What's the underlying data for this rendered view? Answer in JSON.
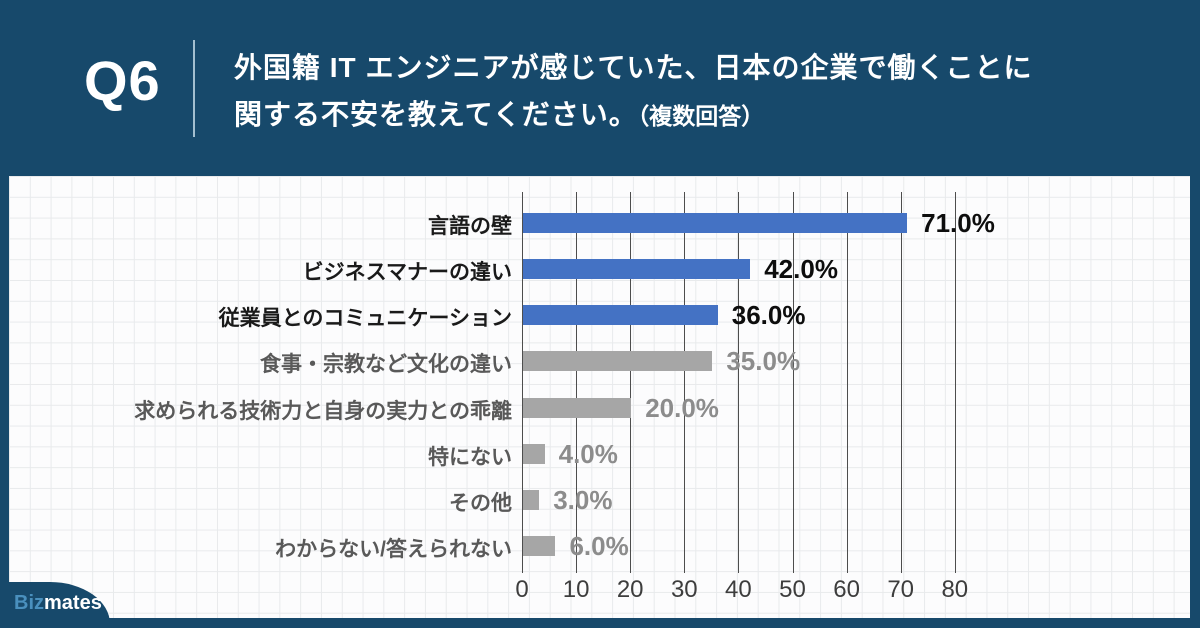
{
  "header": {
    "question_number": "Q6",
    "title_line1": "外国籍 IT エンジニアが感じていた、日本の企業で働くことに",
    "title_line2": "関する不安を教えてください。",
    "title_note": "（複数回答）"
  },
  "branding": {
    "logo_part1": "Biz",
    "logo_part2": "mates"
  },
  "colors": {
    "background_navy": "#17496B",
    "panel_white": "#fcfcfd",
    "graph_paper_line": "#e8eaec",
    "bar_blue": "#4472C4",
    "bar_gray": "#A6A6A6",
    "category_label_dark": "#1a1a1a",
    "category_label_gray": "#595959",
    "value_label_dark": "#0d0d0d",
    "value_label_gray": "#8C8C8C",
    "chart_gridline": "#4d4d4d",
    "tick_label": "#3d3d3d",
    "logo_biz_blue": "#4A90BE",
    "header_separator": "#bcd3e2"
  },
  "chart_data": {
    "type": "bar",
    "orientation": "horizontal",
    "title": "",
    "xlabel": "",
    "ylabel": "",
    "xlim": [
      0,
      80
    ],
    "x_ticks": [
      0,
      10,
      20,
      30,
      40,
      50,
      60,
      70,
      80
    ],
    "grid": "vertical-only",
    "legend": "none",
    "categories": [
      "言語の壁",
      "ビジネスマナーの違い",
      "従業員とのコミュニケーション",
      "食事・宗教など文化の違い",
      "求められる技術力と自身の実力との乖離",
      "特にない",
      "その他",
      "わからない/答えられない"
    ],
    "values": [
      71.0,
      42.0,
      36.0,
      35.0,
      20.0,
      4.0,
      3.0,
      6.0
    ],
    "value_labels": [
      "71.0%",
      "42.0%",
      "36.0%",
      "35.0%",
      "20.0%",
      "4.0%",
      "3.0%",
      "6.0%"
    ],
    "emphasized": [
      true,
      true,
      true,
      false,
      false,
      false,
      false,
      false
    ]
  }
}
